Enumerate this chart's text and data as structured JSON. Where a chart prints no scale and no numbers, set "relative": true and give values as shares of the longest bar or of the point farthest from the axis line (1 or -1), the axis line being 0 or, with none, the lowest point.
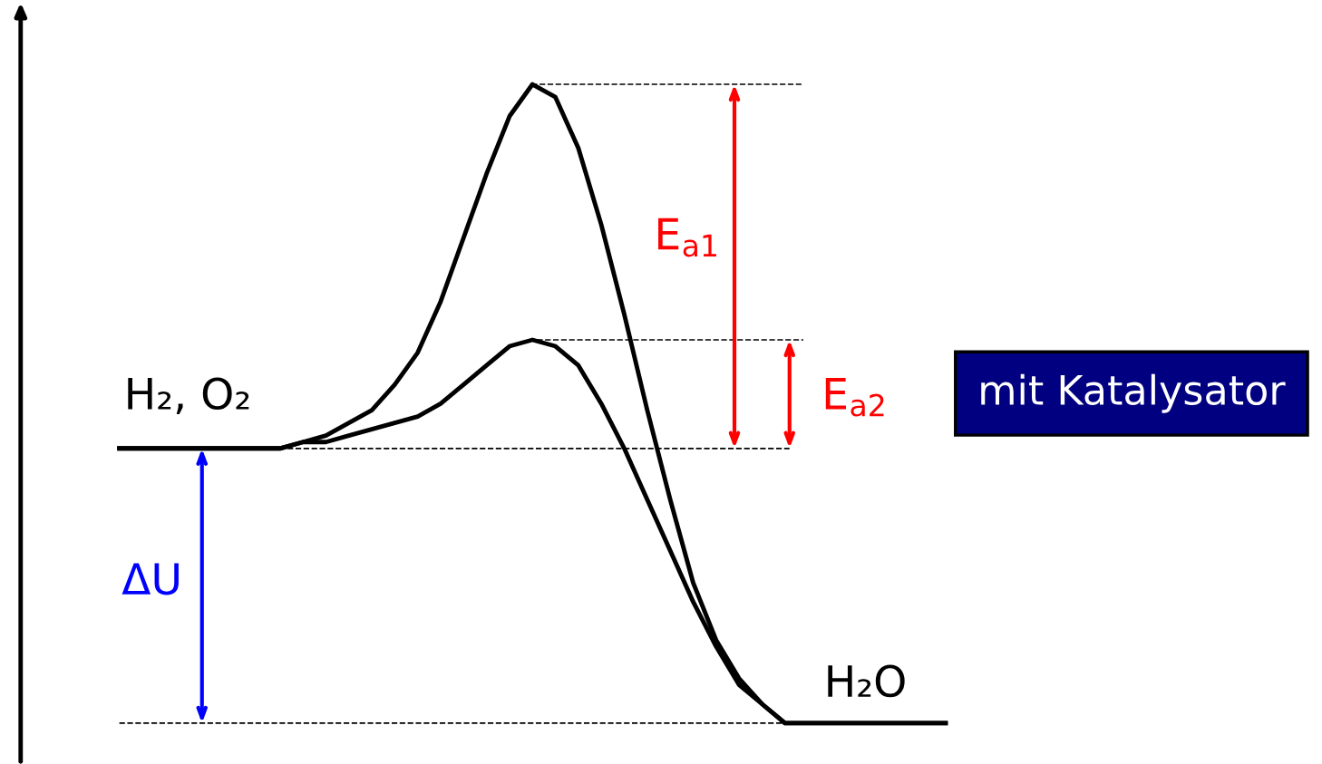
{
  "chart_data": {
    "type": "line",
    "relative": true,
    "marker": "none",
    "line_style": "solid",
    "legend": false,
    "categories": [
      null,
      null,
      null,
      null,
      null,
      null,
      null,
      null,
      null,
      null,
      null,
      null,
      null,
      null,
      null,
      null,
      null,
      null,
      null,
      null,
      null,
      null,
      null,
      null,
      null,
      null,
      null,
      null,
      null,
      null,
      null,
      null,
      null,
      null,
      null,
      null,
      null
    ],
    "series": [
      {
        "color": "#000000",
        "values": [
          0.43,
          0.43,
          0.43,
          0.43,
          0.43,
          0.43,
          0.43,
          0.43,
          0.44,
          0.45,
          0.47,
          0.49,
          0.53,
          0.58,
          0.66,
          0.76,
          0.86,
          0.95,
          1.0,
          0.98,
          0.9,
          0.78,
          0.64,
          0.49,
          0.35,
          0.22,
          0.13,
          0.07,
          0.03,
          0,
          0,
          0,
          0,
          0,
          0,
          0,
          0
        ]
      },
      {
        "color": "#000000",
        "values": [
          0.43,
          0.43,
          0.43,
          0.43,
          0.43,
          0.43,
          0.43,
          0.43,
          0.44,
          0.44,
          0.45,
          0.46,
          0.47,
          0.48,
          0.5,
          0.53,
          0.56,
          0.59,
          0.6,
          0.59,
          0.56,
          0.5,
          0.43,
          0.35,
          0.27,
          0.19,
          0.12,
          0.06,
          0.03,
          0,
          0,
          0,
          0,
          0,
          0,
          0,
          0
        ]
      }
    ],
    "ref_lines": [
      {
        "axis": "y",
        "value": 0.43,
        "color": "#000000",
        "line_style": "dashed"
      },
      {
        "axis": "y",
        "value": 1.0,
        "color": "#000000",
        "line_style": "dashed"
      },
      {
        "axis": "y",
        "value": 0.6,
        "color": "#000000",
        "line_style": "dashed"
      },
      {
        "axis": "y",
        "value": 0,
        "color": "#000000",
        "line_style": "dashed"
      }
    ],
    "annotations": [
      "H₂, O₂",
      "H₂O",
      "E$_{a1}$",
      "E$_{a2}$",
      "ΔU",
      "mit Katalysator"
    ]
  }
}
